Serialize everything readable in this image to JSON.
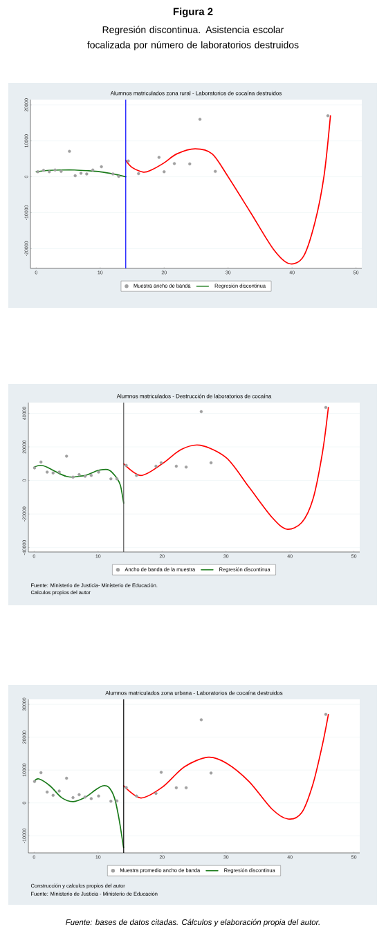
{
  "chart_data": [
    {
      "type": "other",
      "title": "Figura 2",
      "subtitle": "Regresión discontinua. Asistencia escolar focalizada por número de laboratorios destruidos",
      "annotations": [
        "Fuente: bases de datos citadas. Cálculos y elaboración propia del autor."
      ]
    },
    {
      "type": "scatter",
      "title": "Alumnos matriculados zona rural - Laboratorios de cocaína destruidos",
      "xlim": [
        -0.9,
        50.9
      ],
      "ylim": [
        -25500,
        21500
      ],
      "xticks": [
        0,
        10,
        20,
        30,
        40,
        50
      ],
      "yticks": [
        -20000,
        -10000,
        0,
        10000,
        20000
      ],
      "grid": "y",
      "legend": "bottom",
      "ref_lines": [
        {
          "axis": "x",
          "value": 14,
          "color": "#0000ff"
        }
      ],
      "series": [
        {
          "type": "scatter",
          "name": "Muestra ancho de banda",
          "color": "#a0a0a0",
          "x": [
            0.25,
            1.15,
            2.05,
            2.95,
            3.9,
            5.2,
            6.1,
            7.0,
            7.9,
            8.85,
            10.2,
            12.0,
            12.9,
            14.4,
            16.0,
            19.2,
            20.0,
            21.6,
            24.0,
            25.6,
            28.0,
            45.6
          ],
          "values": [
            1400,
            1800,
            1400,
            1900,
            1500,
            7100,
            300,
            1000,
            800,
            1900,
            2800,
            800,
            100,
            4400,
            900,
            5400,
            1400,
            3700,
            3600,
            16000,
            1500,
            17000
          ]
        },
        {
          "type": "line",
          "name": "Regresión discontinua",
          "color": "#1a7a1a",
          "x": [
            0,
            2,
            4,
            6,
            8,
            10,
            12,
            14
          ],
          "values": [
            1400,
            1800,
            1900,
            1900,
            1700,
            1400,
            800,
            0
          ]
        },
        {
          "type": "line",
          "color": "#ff0000",
          "x": [
            14,
            15,
            16.75,
            18,
            20,
            22,
            24.85,
            27.5,
            29.9,
            33.5,
            37.1,
            39.6,
            41.8,
            43.6,
            45,
            46
          ],
          "values": [
            4600,
            2600,
            1300,
            1900,
            3900,
            6400,
            7800,
            6400,
            300,
            -9900,
            -20200,
            -24200,
            -22100,
            -12500,
            300,
            17000
          ]
        }
      ]
    },
    {
      "type": "scatter",
      "title": "Alumnos matriculados - Destrucción de laboratorios de cocaína",
      "xlim": [
        -0.9,
        50.9
      ],
      "ylim": [
        -42600,
        46400
      ],
      "xticks": [
        0,
        10,
        20,
        30,
        40,
        50
      ],
      "yticks": [
        -40000,
        -20000,
        0,
        20000,
        40000
      ],
      "grid": "y",
      "legend": "bottom",
      "ref_lines": [
        {
          "axis": "x",
          "value": 14,
          "color": "#555555"
        }
      ],
      "annotations": [
        "Fuente: Ministerio de Justicia- Ministerio de Educación.",
        "Calculos propios del autor"
      ],
      "series": [
        {
          "type": "scatter",
          "name": "Ancho de banda de la muestra",
          "color": "#a0a0a0",
          "x": [
            0.07,
            1.07,
            2.04,
            2.97,
            3.93,
            5.07,
            6.08,
            7.04,
            7.97,
            8.93,
            10.08,
            12.0,
            12.94,
            14.4,
            16.0,
            19.05,
            19.87,
            22.23,
            23.77,
            26.13,
            27.66,
            45.6
          ],
          "values": [
            7500,
            11000,
            5000,
            4500,
            5000,
            14500,
            2000,
            3500,
            2500,
            3000,
            5000,
            1000,
            1000,
            9000,
            3000,
            8500,
            10500,
            8500,
            8000,
            41000,
            10500,
            43500
          ]
        },
        {
          "type": "line",
          "name": "Regresión discontinua",
          "color": "#1a7a1a",
          "x": [
            0,
            1,
            2,
            3,
            4,
            5,
            6,
            7,
            8,
            9,
            10,
            10.8,
            11.5,
            12,
            12.5,
            13,
            13.5,
            14
          ],
          "values": [
            8000,
            9000,
            8000,
            6000,
            4000,
            2500,
            2000,
            2500,
            3000,
            4500,
            6000,
            6500,
            6500,
            5500,
            3500,
            1000,
            -3000,
            -13500
          ]
        },
        {
          "type": "line",
          "color": "#ff0000",
          "x": [
            14,
            16.7,
            20.05,
            23,
            25.95,
            30.06,
            33.6,
            37.2,
            39.5,
            41.85,
            43.6,
            45.07,
            46
          ],
          "values": [
            10000,
            3000,
            10000,
            18500,
            21000,
            13500,
            -4000,
            -22000,
            -29000,
            -25000,
            -11000,
            16500,
            43500
          ]
        }
      ]
    },
    {
      "type": "scatter",
      "title": "Alumnos matriculados zona urbana - Laboratorios de cocaína destruidos",
      "xlim": [
        -0.9,
        50.9
      ],
      "ylim": [
        -15200,
        31500
      ],
      "xticks": [
        0,
        10,
        20,
        30,
        40,
        50
      ],
      "yticks": [
        -10000,
        0,
        10000,
        20000,
        30000
      ],
      "grid": "y",
      "legend": "bottom",
      "ref_lines": [
        {
          "axis": "x",
          "value": 14,
          "color": "#000000"
        }
      ],
      "annotations": [
        "Construcción y calculos propios del autor",
        "Fuente: Ministerio de Justicia - Ministerio de Educación"
      ],
      "series": [
        {
          "type": "scatter",
          "name": "Muestra promedio ancho de banda",
          "color": "#a0a0a0",
          "x": [
            0.07,
            1.07,
            2.04,
            2.97,
            3.93,
            5.07,
            6.08,
            7.04,
            7.97,
            8.93,
            10.08,
            12.0,
            12.94,
            14.4,
            16.0,
            19.05,
            19.87,
            22.23,
            23.77,
            26.13,
            27.66,
            45.6
          ],
          "values": [
            6500,
            9200,
            3300,
            2300,
            3600,
            7500,
            1600,
            2500,
            1800,
            1300,
            2100,
            500,
            600,
            4700,
            2100,
            2900,
            9300,
            4600,
            4600,
            25300,
            9100,
            26900
          ]
        },
        {
          "type": "line",
          "name": "Regresión discontinua",
          "color": "#1a7a1a",
          "x": [
            0,
            0.75,
            2.54,
            4.3,
            6.1,
            7.9,
            9.7,
            10.75,
            11.65,
            12.55,
            13.26,
            13.98
          ],
          "values": [
            6500,
            7300,
            5100,
            1600,
            400,
            1600,
            4100,
            5200,
            4800,
            1600,
            -4700,
            -13600
          ]
        },
        {
          "type": "line",
          "color": "#ff0000",
          "x": [
            14,
            16.7,
            20.05,
            23.5,
            27.2,
            30.06,
            33.6,
            37.2,
            39.7,
            41.85,
            43.6,
            45.07,
            46
          ],
          "values": [
            5200,
            1500,
            4800,
            11000,
            13900,
            12100,
            6500,
            -1900,
            -4900,
            -2900,
            5800,
            17700,
            26900
          ]
        }
      ]
    }
  ]
}
